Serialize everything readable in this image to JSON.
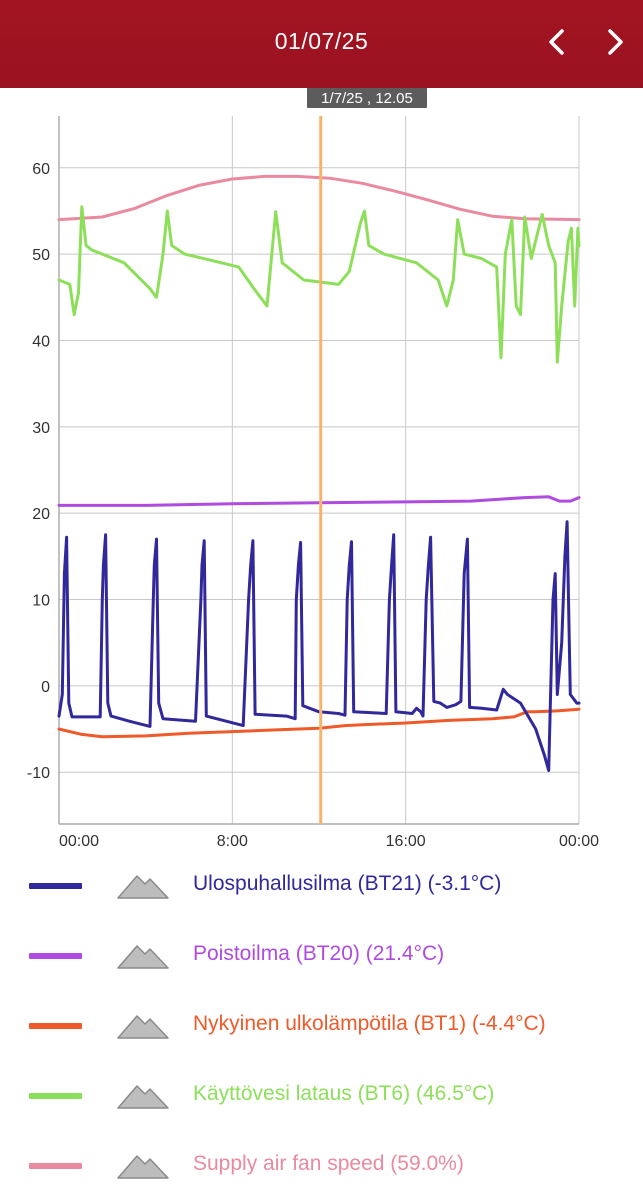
{
  "header": {
    "date": "01/07/25",
    "prev_icon": "chevron-left-icon",
    "next_icon": "chevron-right-icon",
    "background": "#a31422"
  },
  "cursor": {
    "label": "1/7/25 , 12.05",
    "x_hours": 12.08,
    "color": "#f6b46b"
  },
  "legend": {
    "toggle_icon": "area-chart-icon",
    "items": [
      {
        "label": "Ulospuhallusilma (BT21) (-3.1°C)",
        "color": "#31299b"
      },
      {
        "label": "Poistoilma (BT20) (21.4°C)",
        "color": "#b04be0"
      },
      {
        "label": "Nykyinen ulkolämpötila (BT1) (-4.4°C)",
        "color": "#ef5a2a"
      },
      {
        "label": "Käyttövesi lataus (BT6) (46.5°C)",
        "color": "#8ddf5a"
      },
      {
        "label": "Supply air fan speed (59.0%)",
        "color": "#e98aa0"
      }
    ]
  },
  "chart_data": {
    "type": "line",
    "x_unit": "hours",
    "xlim": [
      0,
      24
    ],
    "ylim": [
      -16,
      66
    ],
    "x_ticks": [
      0,
      8,
      16,
      24
    ],
    "x_tick_labels": [
      "00:00",
      "8:00",
      "16:00",
      "00:00"
    ],
    "y_ticks": [
      -10,
      0,
      10,
      20,
      30,
      40,
      50,
      60
    ],
    "y_tick_labels": [
      "-10",
      "0",
      "10",
      "20",
      "30",
      "40",
      "50",
      "60"
    ],
    "grid": true,
    "series": [
      {
        "name": "Supply air fan speed (59.0%)",
        "color": "#e98aa0",
        "points": [
          [
            0,
            54
          ],
          [
            2,
            54.3
          ],
          [
            3.5,
            55.3
          ],
          [
            5,
            56.8
          ],
          [
            6.5,
            58
          ],
          [
            8,
            58.7
          ],
          [
            9.5,
            59
          ],
          [
            11,
            59
          ],
          [
            12.5,
            58.8
          ],
          [
            14,
            58.2
          ],
          [
            15.5,
            57.3
          ],
          [
            17,
            56.3
          ],
          [
            18.5,
            55.2
          ],
          [
            20,
            54.4
          ],
          [
            21.5,
            54.1
          ],
          [
            24,
            54
          ]
        ]
      },
      {
        "name": "Käyttövesi lataus (BT6) (46.5°C)",
        "color": "#8ddf5a",
        "points": [
          [
            0,
            47
          ],
          [
            0.5,
            46.5
          ],
          [
            0.7,
            43
          ],
          [
            0.9,
            45.5
          ],
          [
            1.05,
            55.5
          ],
          [
            1.25,
            51
          ],
          [
            1.5,
            50.5
          ],
          [
            2,
            50
          ],
          [
            3,
            49
          ],
          [
            4.2,
            46
          ],
          [
            4.5,
            45
          ],
          [
            4.8,
            50
          ],
          [
            5.0,
            55
          ],
          [
            5.2,
            51
          ],
          [
            5.8,
            50
          ],
          [
            7,
            49.3
          ],
          [
            8.3,
            48.5
          ],
          [
            9,
            46
          ],
          [
            9.6,
            44
          ],
          [
            10.0,
            54.9
          ],
          [
            10.3,
            49
          ],
          [
            11.3,
            47
          ],
          [
            12.9,
            46.5
          ],
          [
            13.4,
            48
          ],
          [
            13.9,
            53.5
          ],
          [
            14.1,
            55
          ],
          [
            14.3,
            51
          ],
          [
            15,
            50
          ],
          [
            16.5,
            49
          ],
          [
            17.5,
            47
          ],
          [
            17.9,
            44
          ],
          [
            18.2,
            47
          ],
          [
            18.4,
            54
          ],
          [
            18.7,
            50
          ],
          [
            19.5,
            49.5
          ],
          [
            20.2,
            48.5
          ],
          [
            20.4,
            38
          ],
          [
            20.6,
            50
          ],
          [
            20.9,
            54
          ],
          [
            21.1,
            44
          ],
          [
            21.3,
            43
          ],
          [
            21.5,
            54.3
          ],
          [
            21.8,
            49.5
          ],
          [
            22.3,
            54.6
          ],
          [
            22.6,
            51
          ],
          [
            22.9,
            49
          ],
          [
            23.0,
            37.5
          ],
          [
            23.2,
            44
          ],
          [
            23.5,
            51.5
          ],
          [
            23.65,
            53
          ],
          [
            23.8,
            44
          ],
          [
            23.95,
            53
          ],
          [
            24,
            51
          ]
        ]
      },
      {
        "name": "Poistoilma (BT20) (21.4°C)",
        "color": "#b04be0",
        "points": [
          [
            0,
            20.9
          ],
          [
            4,
            20.9
          ],
          [
            8,
            21.1
          ],
          [
            12,
            21.2
          ],
          [
            16,
            21.3
          ],
          [
            19,
            21.4
          ],
          [
            21.5,
            21.8
          ],
          [
            22.6,
            21.9
          ],
          [
            23.1,
            21.4
          ],
          [
            23.6,
            21.4
          ],
          [
            24,
            21.8
          ]
        ]
      },
      {
        "name": "Nykyinen ulkolämpötila (BT1) (-4.4°C)",
        "color": "#ef5a2a",
        "points": [
          [
            0,
            -5
          ],
          [
            1,
            -5.6
          ],
          [
            2,
            -5.9
          ],
          [
            4,
            -5.8
          ],
          [
            6,
            -5.5
          ],
          [
            8,
            -5.3
          ],
          [
            10,
            -5.1
          ],
          [
            12,
            -4.9
          ],
          [
            13.2,
            -4.6
          ],
          [
            14,
            -4.5
          ],
          [
            16,
            -4.3
          ],
          [
            18,
            -4.0
          ],
          [
            20,
            -3.8
          ],
          [
            21,
            -3.6
          ],
          [
            21.6,
            -3.0
          ],
          [
            22,
            -3.0
          ],
          [
            23,
            -2.9
          ],
          [
            24,
            -2.7
          ]
        ]
      },
      {
        "name": "Ulospuhallusilma (BT21) (-3.1°C)",
        "color": "#31299b",
        "points": [
          [
            0,
            -3.5
          ],
          [
            0.15,
            -1
          ],
          [
            0.25,
            13
          ],
          [
            0.35,
            17.2
          ],
          [
            0.45,
            -2
          ],
          [
            0.6,
            -3.6
          ],
          [
            1.9,
            -3.6
          ],
          [
            2.0,
            10
          ],
          [
            2.05,
            14
          ],
          [
            2.15,
            17.5
          ],
          [
            2.25,
            -2
          ],
          [
            2.4,
            -3.5
          ],
          [
            3.4,
            -4.2
          ],
          [
            4.2,
            -4.7
          ],
          [
            4.35,
            10
          ],
          [
            4.4,
            14
          ],
          [
            4.5,
            17
          ],
          [
            4.6,
            -2
          ],
          [
            4.8,
            -3.8
          ],
          [
            6.3,
            -4.1
          ],
          [
            6.55,
            10
          ],
          [
            6.6,
            14
          ],
          [
            6.7,
            16.8
          ],
          [
            6.8,
            -3.5
          ],
          [
            8.5,
            -4.6
          ],
          [
            8.75,
            10
          ],
          [
            8.85,
            14
          ],
          [
            8.95,
            16.8
          ],
          [
            9.05,
            -3.3
          ],
          [
            10.5,
            -3.5
          ],
          [
            10.9,
            -3.8
          ],
          [
            10.95,
            10
          ],
          [
            11.05,
            14
          ],
          [
            11.15,
            16.6
          ],
          [
            11.25,
            -2.3
          ],
          [
            12.0,
            -3
          ],
          [
            12.9,
            -3.2
          ],
          [
            13.2,
            -3.4
          ],
          [
            13.3,
            10
          ],
          [
            13.4,
            14
          ],
          [
            13.5,
            16.7
          ],
          [
            13.6,
            -3
          ],
          [
            15.1,
            -3.2
          ],
          [
            15.25,
            10
          ],
          [
            15.35,
            14
          ],
          [
            15.45,
            17.5
          ],
          [
            15.55,
            -3
          ],
          [
            16.3,
            -3.2
          ],
          [
            16.5,
            -2.6
          ],
          [
            16.7,
            -3.0
          ],
          [
            16.8,
            -3.5
          ],
          [
            16.95,
            10
          ],
          [
            17.05,
            14
          ],
          [
            17.15,
            17.2
          ],
          [
            17.3,
            -1.8
          ],
          [
            17.6,
            -2
          ],
          [
            17.9,
            -2.5
          ],
          [
            18.3,
            -2.2
          ],
          [
            18.55,
            -1.8
          ],
          [
            18.7,
            13
          ],
          [
            18.85,
            17
          ],
          [
            18.95,
            -2.5
          ],
          [
            19.5,
            -2.6
          ],
          [
            20.2,
            -2.8
          ],
          [
            20.5,
            -0.4
          ],
          [
            20.7,
            -1
          ],
          [
            21.3,
            -2
          ],
          [
            22.0,
            -5
          ],
          [
            22.4,
            -8
          ],
          [
            22.6,
            -9.8
          ],
          [
            22.7,
            0
          ],
          [
            22.8,
            10
          ],
          [
            22.9,
            13
          ],
          [
            23.0,
            -1
          ],
          [
            23.2,
            5
          ],
          [
            23.35,
            15
          ],
          [
            23.45,
            19
          ],
          [
            23.55,
            5
          ],
          [
            23.6,
            -1
          ],
          [
            23.9,
            -2
          ],
          [
            24,
            -2
          ]
        ]
      }
    ]
  }
}
